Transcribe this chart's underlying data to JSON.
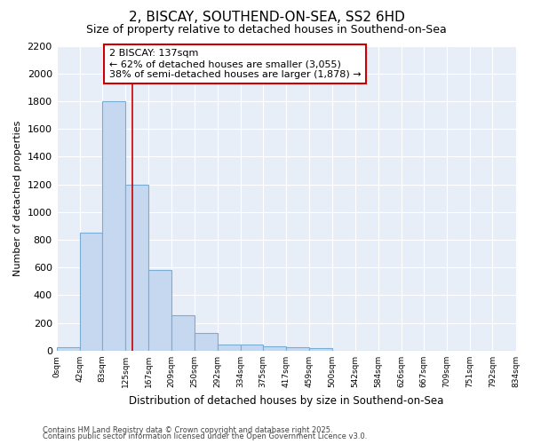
{
  "title1": "2, BISCAY, SOUTHEND-ON-SEA, SS2 6HD",
  "title2": "Size of property relative to detached houses in Southend-on-Sea",
  "xlabel": "Distribution of detached houses by size in Southend-on-Sea",
  "ylabel": "Number of detached properties",
  "bin_labels": [
    "0sqm",
    "42sqm",
    "83sqm",
    "125sqm",
    "167sqm",
    "209sqm",
    "250sqm",
    "292sqm",
    "334sqm",
    "375sqm",
    "417sqm",
    "459sqm",
    "500sqm",
    "542sqm",
    "584sqm",
    "626sqm",
    "667sqm",
    "709sqm",
    "751sqm",
    "792sqm",
    "834sqm"
  ],
  "bin_edges": [
    0,
    42,
    83,
    125,
    167,
    209,
    250,
    292,
    334,
    375,
    417,
    459,
    500,
    542,
    584,
    626,
    667,
    709,
    751,
    792,
    834
  ],
  "bar_heights": [
    25,
    850,
    1800,
    1200,
    580,
    255,
    130,
    45,
    45,
    30,
    25,
    20,
    0,
    0,
    0,
    0,
    0,
    0,
    0,
    0
  ],
  "bar_color": "#c5d8f0",
  "bar_edge_color": "#7aadd4",
  "vline_x": 137,
  "vline_color": "#cc0000",
  "annotation_text": "2 BISCAY: 137sqm\n← 62% of detached houses are smaller (3,055)\n38% of semi-detached houses are larger (1,878) →",
  "annotation_box_color": "#cc0000",
  "annotation_box_fill": "#ffffff",
  "ylim": [
    0,
    2200
  ],
  "yticks": [
    0,
    200,
    400,
    600,
    800,
    1000,
    1200,
    1400,
    1600,
    1800,
    2000,
    2200
  ],
  "bg_color": "#ffffff",
  "plot_bg_color": "#e8eef8",
  "grid_color": "#ffffff",
  "footer1": "Contains HM Land Registry data © Crown copyright and database right 2025.",
  "footer2": "Contains public sector information licensed under the Open Government Licence v3.0."
}
